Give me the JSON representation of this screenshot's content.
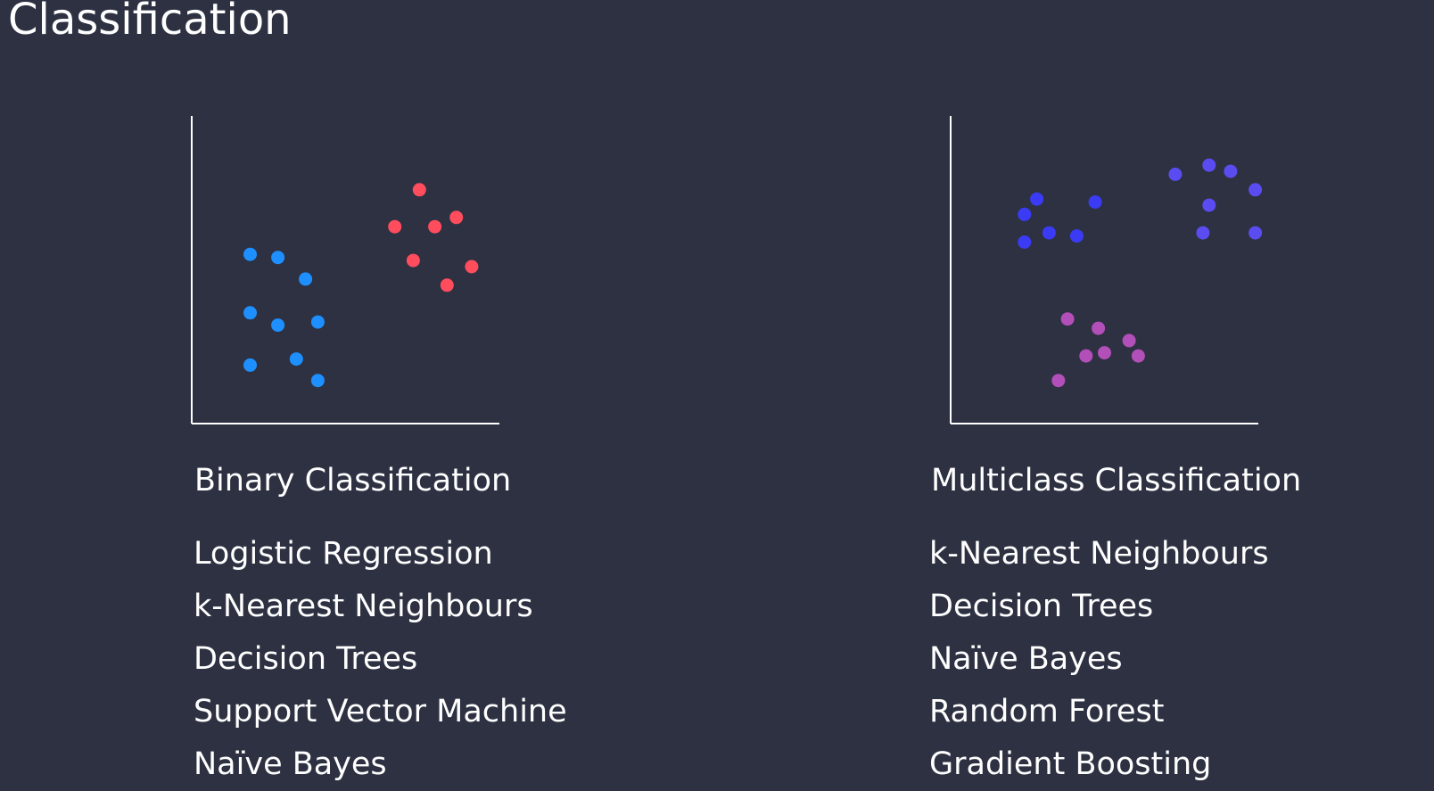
{
  "title": "Classification",
  "colors": {
    "background": "#2d3142",
    "axis": "#ffffff",
    "text": "#ffffff",
    "binary_class_a": "#1e8fff",
    "binary_class_b": "#ff4d5e",
    "multi_class_a": "#3b3bf5",
    "multi_class_b": "#5a4cf0",
    "multi_class_c": "#b34fb8"
  },
  "binary": {
    "caption": "Binary Classification",
    "algorithms": [
      "Logistic Regression",
      "k-Nearest Neighbours",
      "Decision Trees",
      "Support Vector Machine",
      "Naïve Bayes"
    ]
  },
  "multiclass": {
    "caption": "Multiclass Classification",
    "algorithms": [
      "k-Nearest Neighbours",
      "Decision Trees",
      "Naïve Bayes",
      "Random Forest",
      "Gradient Boosting"
    ]
  },
  "chart_data": [
    {
      "type": "scatter",
      "title": "Binary Classification",
      "xlabel": "",
      "ylabel": "",
      "xlim": [
        0,
        100
      ],
      "ylim": [
        0,
        100
      ],
      "grid": false,
      "series": [
        {
          "color": "#1e8fff",
          "points": [
            [
              19,
              55
            ],
            [
              28,
              54
            ],
            [
              37,
              47
            ],
            [
              19,
              36
            ],
            [
              28,
              32
            ],
            [
              41,
              33
            ],
            [
              19,
              19
            ],
            [
              34,
              21
            ],
            [
              41,
              14
            ]
          ]
        },
        {
          "color": "#ff4d5e",
          "points": [
            [
              74,
              76
            ],
            [
              66,
              64
            ],
            [
              79,
              64
            ],
            [
              86,
              67
            ],
            [
              72,
              53
            ],
            [
              91,
              51
            ],
            [
              83,
              45
            ]
          ]
        }
      ]
    },
    {
      "type": "scatter",
      "title": "Multiclass Classification",
      "xlabel": "",
      "ylabel": "",
      "xlim": [
        0,
        100
      ],
      "ylim": [
        0,
        100
      ],
      "grid": false,
      "series": [
        {
          "color": "#3b3bf5",
          "points": [
            [
              28,
              73
            ],
            [
              24,
              68
            ],
            [
              47,
              72
            ],
            [
              32,
              62
            ],
            [
              41,
              61
            ],
            [
              24,
              59
            ]
          ]
        },
        {
          "color": "#5a4cf0",
          "points": [
            [
              73,
              81
            ],
            [
              84,
              84
            ],
            [
              91,
              82
            ],
            [
              99,
              76
            ],
            [
              84,
              71
            ],
            [
              82,
              62
            ],
            [
              99,
              62
            ]
          ]
        },
        {
          "color": "#b34fb8",
          "points": [
            [
              38,
              34
            ],
            [
              48,
              31
            ],
            [
              58,
              27
            ],
            [
              44,
              22
            ],
            [
              50,
              23
            ],
            [
              61,
              22
            ],
            [
              35,
              14
            ]
          ]
        }
      ]
    }
  ]
}
